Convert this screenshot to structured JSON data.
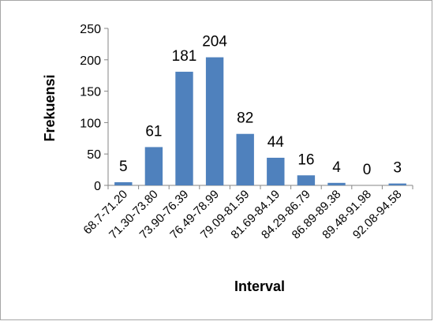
{
  "chart_data": {
    "type": "bar",
    "title": "",
    "xlabel": "Interval",
    "ylabel": "Frekuensi",
    "ylim": [
      0,
      250
    ],
    "yticks": [
      0,
      50,
      100,
      150,
      200,
      250
    ],
    "grid": false,
    "legend": "none",
    "bar_color": "#4f81bd",
    "categories": [
      "68.7-71.20",
      "71.30-73.80",
      "73.90-76.39",
      "76.49-78.99",
      "79.09-81.59",
      "81.69-84.19",
      "84.29-86.79",
      "86.89-89.38",
      "89.48-91.98",
      "92.08-94.58"
    ],
    "values": [
      5,
      61,
      181,
      204,
      82,
      44,
      16,
      4,
      0,
      3
    ]
  }
}
